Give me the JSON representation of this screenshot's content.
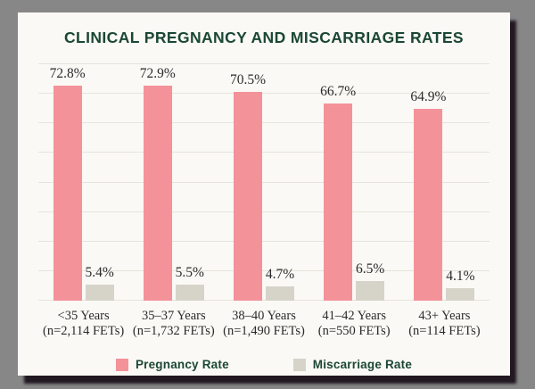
{
  "title": "CLINICAL PREGNANCY AND MISCARRIAGE RATES",
  "colors": {
    "page_background": "#878787",
    "card_background": "#FAF9F5",
    "title_green": "#1B4734",
    "pregnancy_pink": "#F4929A",
    "miscarriage_gray": "#D6D3C9",
    "gridline": "#E6E4DC",
    "label_text": "#2B2B2B",
    "shadow": "rgba(24,14,24,0.92)"
  },
  "chart_data": {
    "type": "bar",
    "title": "CLINICAL PREGNANCY AND MISCARRIAGE RATES",
    "categories": [
      "<35 Years (n=2,114 FETs)",
      "35-37 Years (n=1,732 FETs)",
      "38-40 Years (n=1,490 FETs)",
      "41-42 Years (n=550 FETs)",
      "43+ Years (n=114 FETs)"
    ],
    "category_lines": [
      [
        "<35 Years",
        "(n=2,114 FETs)"
      ],
      [
        "35–37 Years",
        "(n=1,732 FETs)"
      ],
      [
        "38–40 Years",
        "(n=1,490 FETs)"
      ],
      [
        "41–42 Years",
        "(n=550 FETs)"
      ],
      [
        "43+ Years",
        "(n=114 FETs)"
      ]
    ],
    "series": [
      {
        "name": "Pregnancy Rate",
        "color": "#F4929A",
        "values": [
          72.8,
          72.9,
          70.5,
          66.7,
          64.9
        ],
        "value_labels": [
          "72.8%",
          "72.9%",
          "70.5%",
          "66.7%",
          "64.9%"
        ]
      },
      {
        "name": "Miscarriage Rate",
        "color": "#D6D3C9",
        "values": [
          5.4,
          5.5,
          4.7,
          6.5,
          4.1
        ],
        "value_labels": [
          "5.4%",
          "5.5%",
          "4.7%",
          "6.5%",
          "4.1%"
        ]
      }
    ],
    "xlabel": "",
    "ylabel": "",
    "ylim": [
      0,
      80
    ],
    "grid_step": 10,
    "grid": true,
    "legend_position": "bottom"
  },
  "legend": {
    "items": [
      {
        "label": "Pregnancy Rate",
        "color": "#F4929A"
      },
      {
        "label": "Miscarriage Rate",
        "color": "#D6D3C9"
      }
    ]
  }
}
